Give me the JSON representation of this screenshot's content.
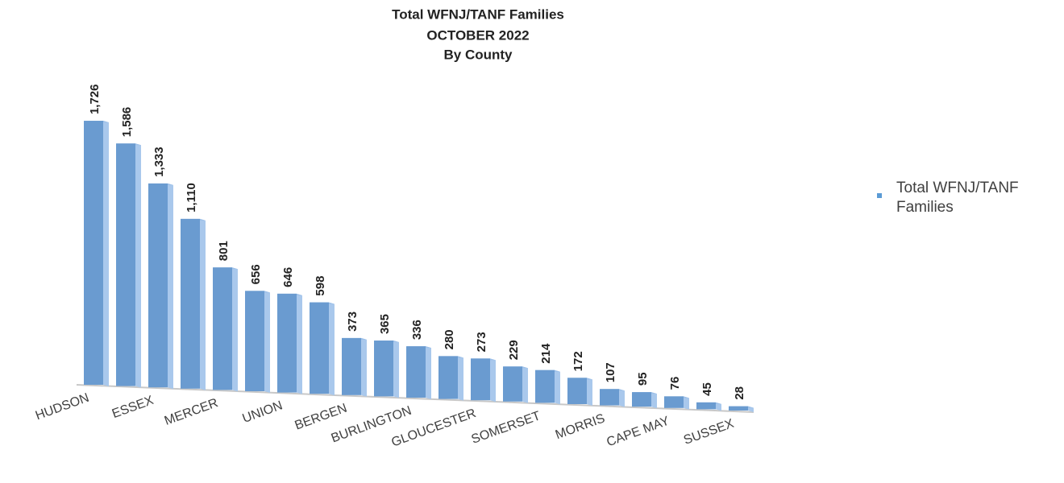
{
  "chart_data": {
    "type": "bar",
    "title": [
      "Total WFNJ/TANF Families",
      "OCTOBER 2022",
      "By County"
    ],
    "categories": [
      "HUDSON",
      null,
      "ESSEX",
      null,
      "MERCER",
      null,
      "UNION",
      null,
      "BERGEN",
      null,
      "BURLINGTON",
      null,
      "GLOUCESTER",
      null,
      "SOMERSET",
      null,
      "MORRIS",
      null,
      "CAPE MAY",
      null,
      "SUSSEX"
    ],
    "series": [
      {
        "name": "Total WFNJ/TANF Families",
        "color": "#6a9bd0",
        "values": [
          1726,
          1586,
          1333,
          1110,
          801,
          656,
          646,
          598,
          373,
          365,
          336,
          280,
          273,
          229,
          214,
          172,
          107,
          95,
          76,
          45,
          28
        ],
        "value_labels": [
          "1,726",
          "1,586",
          "1,333",
          "1,110",
          "801",
          "656",
          "646",
          "598",
          "373",
          "365",
          "336",
          "280",
          "273",
          "229",
          "214",
          "172",
          "107",
          "95",
          "76",
          "45",
          "28"
        ]
      }
    ],
    "legend": "right"
  }
}
